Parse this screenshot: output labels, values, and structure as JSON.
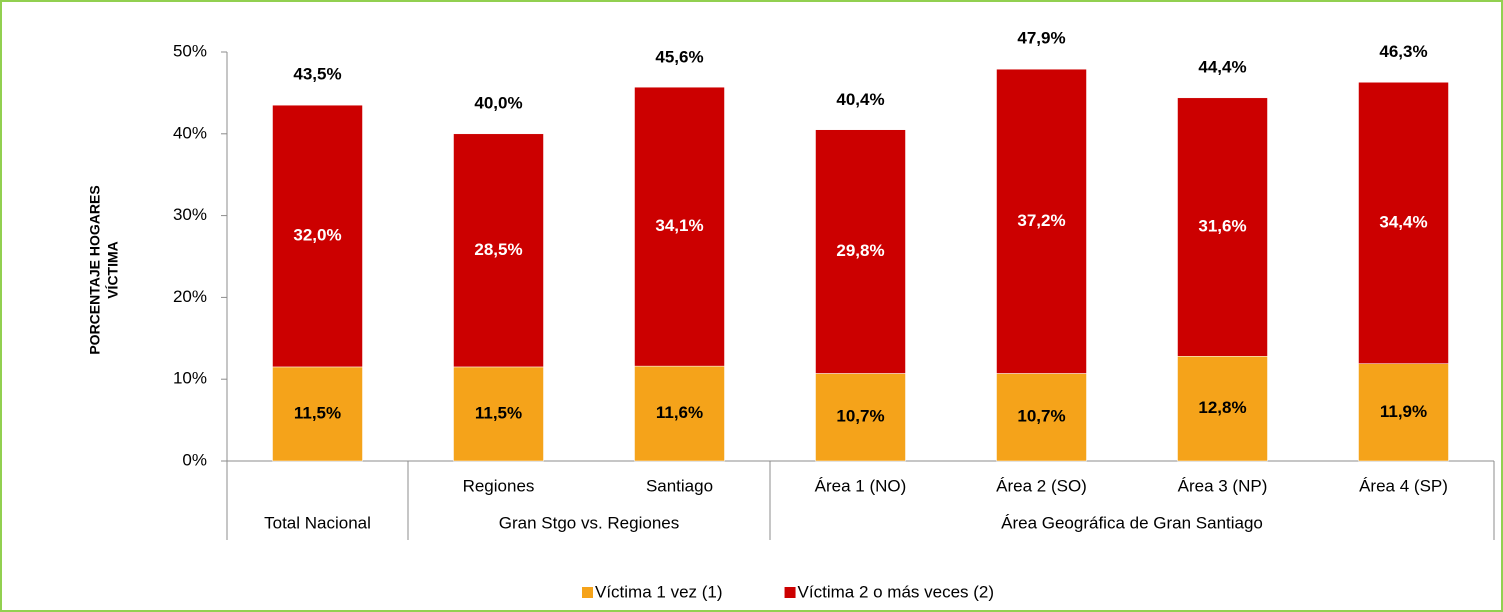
{
  "chart_data": {
    "type": "stacked-bar",
    "ylabel": [
      "PORCENTAJE HOGARES",
      "VÍCTIMA"
    ],
    "categories": [
      null,
      "Regiones",
      "Santiago",
      "Área 1 (NO)",
      "Área 2 (SO)",
      "Área 3 (NP)",
      "Área 4 (SP)"
    ],
    "groups": [
      {
        "label": "Total Nacional",
        "span": 1
      },
      {
        "label": "Gran Stgo vs. Regiones",
        "span": 2
      },
      {
        "label": "Área Geográfica de Gran Santiago",
        "span": 4
      }
    ],
    "series": [
      {
        "name": "Víctima 1 vez (1)",
        "color": "#f5a31a",
        "label_color": "#000000",
        "values": [
          11.5,
          11.5,
          11.6,
          10.7,
          10.7,
          12.8,
          11.9
        ],
        "value_labels": [
          "11,5%",
          "11,5%",
          "11,6%",
          "10,7%",
          "10,7%",
          "12,8%",
          "11,9%"
        ]
      },
      {
        "name": "Víctima 2 o más veces (2)",
        "color": "#cc0000",
        "label_color": "#ffffff",
        "values": [
          32.0,
          28.5,
          34.1,
          29.8,
          37.2,
          31.6,
          34.4
        ],
        "value_labels": [
          "32,0%",
          "28,5%",
          "34,1%",
          "29,8%",
          "37,2%",
          "31,6%",
          "34,4%"
        ]
      }
    ],
    "totals": [
      43.5,
      40.0,
      45.6,
      40.4,
      47.9,
      44.4,
      46.3
    ],
    "total_labels": [
      "43,5%",
      "40,0%",
      "45,6%",
      "40,4%",
      "47,9%",
      "44,4%",
      "46,3%"
    ],
    "ylim": [
      0,
      50
    ],
    "yticks": [
      {
        "value": 0,
        "label": "0%"
      },
      {
        "value": 10,
        "label": "10%"
      },
      {
        "value": 20,
        "label": "20%"
      },
      {
        "value": 30,
        "label": "30%"
      },
      {
        "value": 40,
        "label": "40%"
      },
      {
        "value": 50,
        "label": "50%"
      }
    ],
    "legend": "bottom"
  }
}
